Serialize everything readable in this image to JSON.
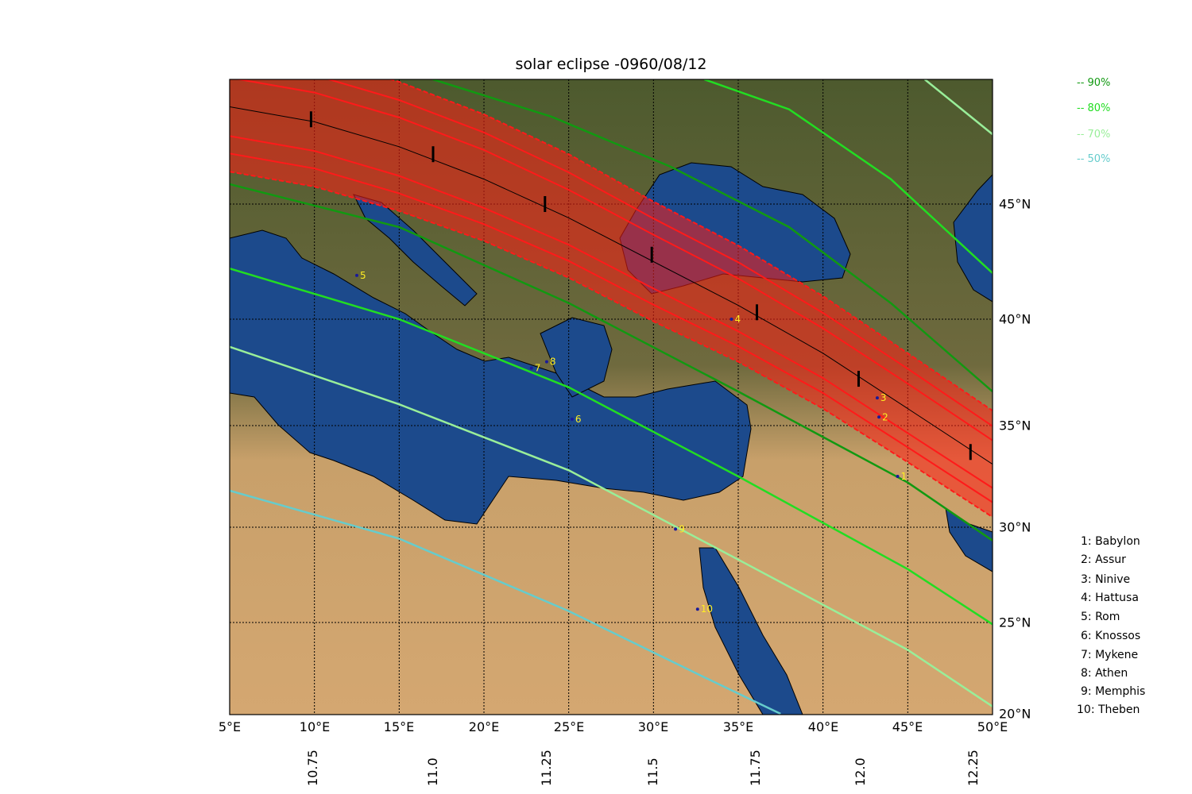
{
  "title": "solar eclipse -0960/08/12",
  "legend_coverage": [
    {
      "label": "-- 90%",
      "color": "#119911"
    },
    {
      "label": "-- 80%",
      "color": "#22dd22"
    },
    {
      "label": "-- 70%",
      "color": "#99ee99"
    },
    {
      "label": "-- 50%",
      "color": "#66cccc"
    }
  ],
  "cities": [
    {
      "key": "1: Babylon",
      "num": "1",
      "lon": 44.4,
      "lat": 32.5
    },
    {
      "key": "2: Assur",
      "num": "2",
      "lon": 43.3,
      "lat": 35.4
    },
    {
      "key": "3: Ninive",
      "num": "3",
      "lon": 43.2,
      "lat": 36.3
    },
    {
      "key": "4: Hattusa",
      "num": "4",
      "lon": 34.6,
      "lat": 40.0
    },
    {
      "key": "5: Rom",
      "num": "5",
      "lon": 12.5,
      "lat": 41.9
    },
    {
      "key": "6: Knossos",
      "num": "6",
      "lon": 25.2,
      "lat": 35.3
    },
    {
      "key": "7: Mykene",
      "num": "7",
      "lon": 22.8,
      "lat": 37.7
    },
    {
      "key": "8: Athen",
      "num": "8",
      "lon": 23.7,
      "lat": 38.0
    },
    {
      "key": "9: Memphis",
      "num": "9",
      "lon": 31.3,
      "lat": 29.9
    },
    {
      "key": "10: Theben",
      "num": "10",
      "lon": 32.6,
      "lat": 25.7
    }
  ],
  "map": {
    "lon_range": [
      5,
      50
    ],
    "lat_range": [
      20,
      50
    ],
    "lon_ticks": [
      "5°E",
      "10°E",
      "15°E",
      "20°E",
      "25°E",
      "30°E",
      "35°E",
      "40°E",
      "45°E",
      "50°E"
    ],
    "lat_ticks": [
      "20°N",
      "25°N",
      "30°N",
      "35°N",
      "40°N",
      "45°N"
    ],
    "time_ticks": [
      "10.75",
      "11.0",
      "11.25",
      "11.5",
      "11.75",
      "12.0",
      "12.25"
    ],
    "totality_center_path": [
      [
        5,
        48.9
      ],
      [
        10,
        48.3
      ],
      [
        15,
        47.3
      ],
      [
        20,
        46.0
      ],
      [
        25,
        44.4
      ],
      [
        30,
        42.5
      ],
      [
        35,
        40.6
      ],
      [
        40,
        38.4
      ],
      [
        45,
        35.8
      ],
      [
        50,
        33.1
      ]
    ],
    "totality_half_width_deg": 2.6,
    "time_marks": [
      [
        9.8,
        48.4
      ],
      [
        17.0,
        47.0
      ],
      [
        23.6,
        45.0
      ],
      [
        29.9,
        42.8
      ],
      [
        36.1,
        40.3
      ],
      [
        42.1,
        37.2
      ],
      [
        48.7,
        33.7
      ]
    ],
    "coverage_curves": [
      {
        "label": "90%",
        "color": "#119911",
        "points": [
          [
            17,
            50
          ],
          [
            24,
            48.5
          ],
          [
            31,
            46.5
          ],
          [
            38,
            44.0
          ],
          [
            44,
            40.7
          ],
          [
            50,
            36.6
          ]
        ]
      },
      {
        "label": "90%",
        "color": "#119911",
        "points": [
          [
            5,
            45.8
          ],
          [
            15,
            44.0
          ],
          [
            25,
            40.7
          ],
          [
            35,
            36.6
          ],
          [
            45,
            32.2
          ],
          [
            50,
            29.3
          ]
        ]
      },
      {
        "label": "80%",
        "color": "#22dd22",
        "points": [
          [
            33,
            50
          ],
          [
            38,
            48.8
          ],
          [
            44,
            46.0
          ],
          [
            50,
            42.0
          ]
        ]
      },
      {
        "label": "80%",
        "color": "#22dd22",
        "points": [
          [
            5,
            42.2
          ],
          [
            15,
            40.0
          ],
          [
            25,
            36.8
          ],
          [
            35,
            32.5
          ],
          [
            45,
            27.8
          ],
          [
            50,
            24.9
          ]
        ]
      },
      {
        "label": "70%",
        "color": "#99ee99",
        "points": [
          [
            46,
            50
          ],
          [
            48,
            48.9
          ],
          [
            50,
            47.8
          ]
        ]
      },
      {
        "label": "70%",
        "color": "#99ee99",
        "points": [
          [
            5,
            38.7
          ],
          [
            15,
            36.0
          ],
          [
            25,
            32.8
          ],
          [
            35,
            28.3
          ],
          [
            45,
            23.5
          ],
          [
            50,
            20.4
          ]
        ]
      },
      {
        "label": "50%",
        "color": "#66cccc",
        "points": [
          [
            5,
            31.8
          ],
          [
            15,
            29.4
          ],
          [
            25,
            25.6
          ],
          [
            33,
            22.0
          ],
          [
            37.5,
            20.0
          ]
        ]
      }
    ]
  }
}
